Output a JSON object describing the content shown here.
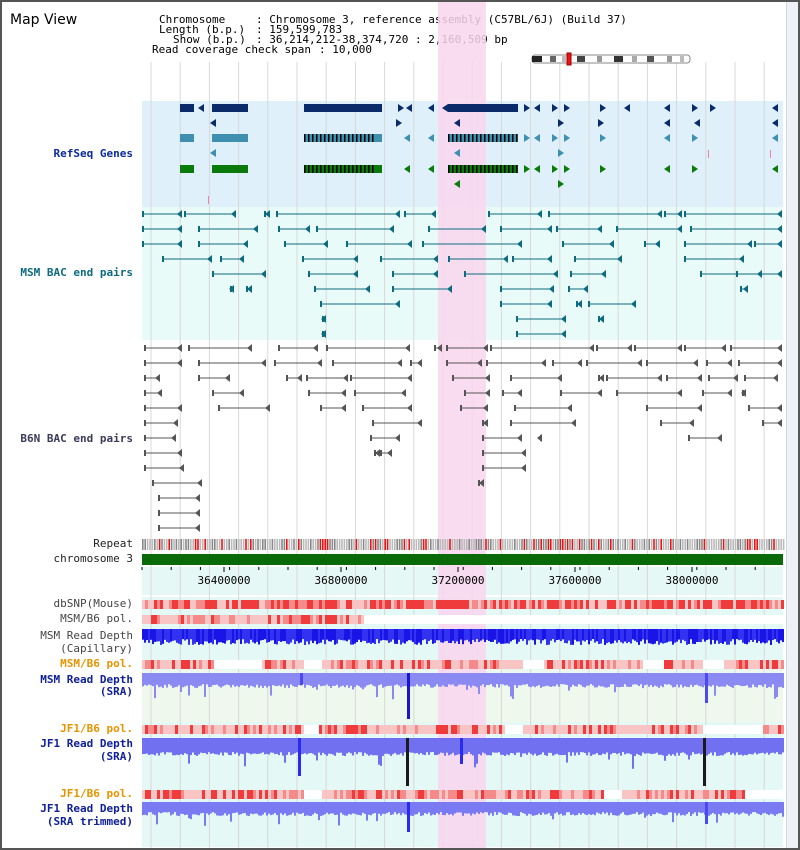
{
  "title": "Map View",
  "info": {
    "chromosome_label": "Chromosome",
    "chromosome_value": "Chromosome 3, reference assembly (C57BL/6J) (Build 37)",
    "length_label": "Length (b.p.)",
    "length_value": "159,599,783",
    "show_label": "Show (b.p.)",
    "show_value": "36,214,212-38,374,720 : 2,160,509 bp",
    "span_label": "Read coverage check span",
    "span_value": "10,000"
  },
  "tracks": {
    "refseq": "RefSeq Genes",
    "msm_bac": "MSM BAC end pairs",
    "b6n_bac": "B6N BAC end pairs",
    "repeat": "Repeat",
    "chromosome": "chromosome 3",
    "dbsnp": "dbSNP(Mouse)",
    "msm_b6_pol_1": "MSM/B6 pol.",
    "msm_read_depth_cap_1": "MSM Read Depth",
    "msm_read_depth_cap_2": "(Capillary)",
    "msm_b6_pol_2": "MSM/B6 pol.",
    "msm_read_depth_sra_1": "MSM Read Depth",
    "msm_read_depth_sra_2": "(SRA)",
    "jf1_b6_pol_1": "JF1/B6 pol.",
    "jf1_read_depth_1": "JF1 Read Depth",
    "jf1_read_depth_2": "(SRA)",
    "jf1_b6_pol_2": "JF1/B6 pol.",
    "jf1_read_depth_trim_1": "JF1 Read Depth",
    "jf1_read_depth_trim_2": "(SRA trimmed)"
  },
  "axis": {
    "ticks": [
      "36400000",
      "36800000",
      "37200000",
      "37600000",
      "38000000"
    ]
  },
  "colors": {
    "highlight": "#f9d6ee",
    "refseq_bg": "#dff0fb",
    "msm_bg": "#e9fbf8",
    "gene_navy": "#0a2a6a",
    "gene_teal": "#3f8fb0",
    "gene_green": "#0a7a0a",
    "depth_blue": "#1a14e6",
    "depth_light": "#7b7bf0",
    "snp_red": "#ef3b3b"
  }
}
